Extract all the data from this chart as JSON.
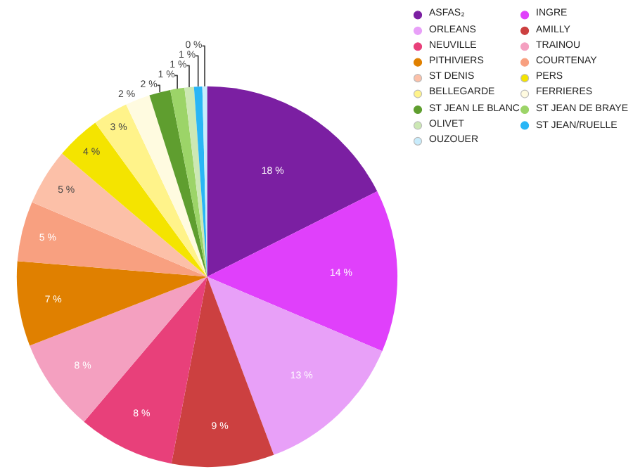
{
  "chart_data": {
    "type": "pie",
    "categories": [
      "ASFAS₂",
      "INGRE",
      "ORLEANS",
      "AMILLY",
      "NEUVILLE",
      "TRAINOU",
      "PITHIVIERS",
      "COURTENAY",
      "ST DENIS",
      "PERS",
      "BELLEGARDE",
      "FERRIERES",
      "ST JEAN LE BLANC",
      "ST JEAN DE BRAYE",
      "OLIVET",
      "ST JEAN/RUELLE",
      "OUZOUER"
    ],
    "values": [
      17.6,
      13.8,
      12.9,
      8.7,
      8.2,
      7.9,
      7.2,
      5.1,
      4.8,
      3.8,
      3.0,
      2.1,
      1.8,
      1.2,
      0.8,
      0.7,
      0.4
    ],
    "value_labels": [
      "18 %",
      "14 %",
      "13 %",
      "9 %",
      "8 %",
      "8 %",
      "7 %",
      "5 %",
      "5 %",
      "4 %",
      "3 %",
      "2 %",
      "2 %",
      "1 %",
      "1 %",
      "1 %",
      "0 %"
    ],
    "colors": [
      "#7b1fa2",
      "#e040fb",
      "#e8a0f8",
      "#cc4040",
      "#e8407a",
      "#f4a0c0",
      "#e08000",
      "#f8a080",
      "#fcc0a8",
      "#f4e400",
      "#fff38a",
      "#fffbe0",
      "#5f9e2f",
      "#9cd468",
      "#cce8b4",
      "#29b6f6",
      "#c8ecfc"
    ],
    "legend": "top right"
  }
}
